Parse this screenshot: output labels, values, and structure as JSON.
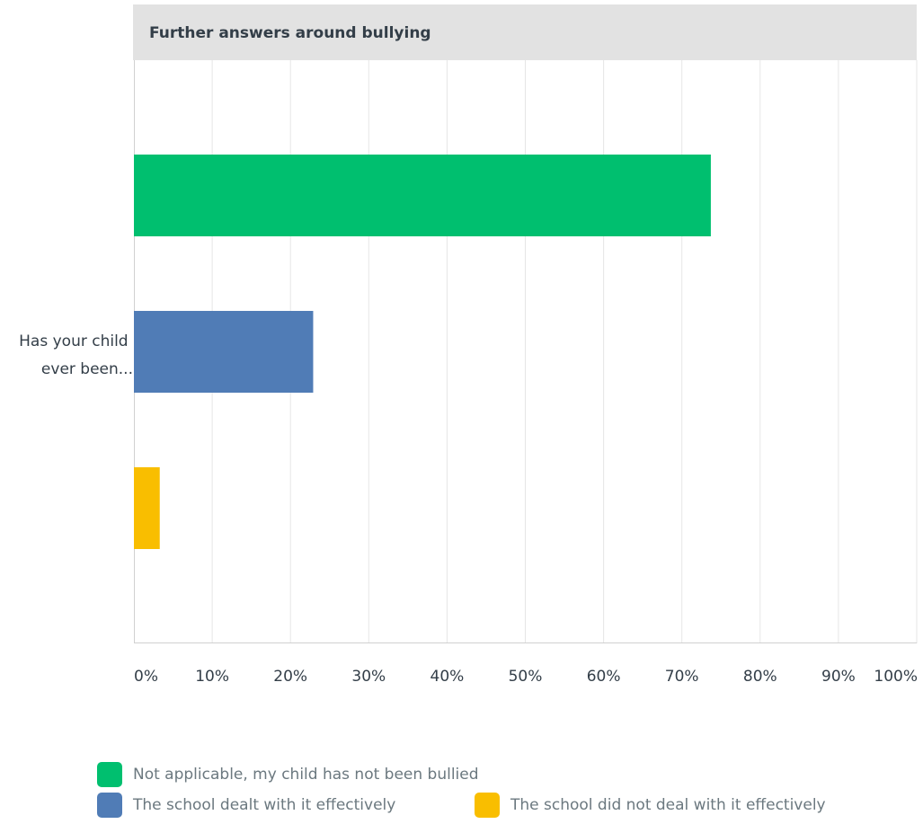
{
  "chart_data": {
    "type": "bar",
    "orientation": "horizontal",
    "title": "Further answers around bullying",
    "categories": [
      "Has your child ever been..."
    ],
    "category_label_lines": [
      "Has your child",
      "ever been..."
    ],
    "series": [
      {
        "name": "Not applicable, my child has not been bullied",
        "values": [
          73.7
        ],
        "color": "#00bf6f"
      },
      {
        "name": "The school dealt with it effectively",
        "values": [
          22.9
        ],
        "color": "#507cb6"
      },
      {
        "name": "The school did not deal with it effectively",
        "values": [
          3.3
        ],
        "color": "#f9be00"
      }
    ],
    "x_ticks": [
      "0%",
      "10%",
      "20%",
      "30%",
      "40%",
      "50%",
      "60%",
      "70%",
      "80%",
      "90%",
      "100%"
    ],
    "xlim": [
      0,
      100
    ],
    "grid": true,
    "legend_position": "bottom"
  }
}
